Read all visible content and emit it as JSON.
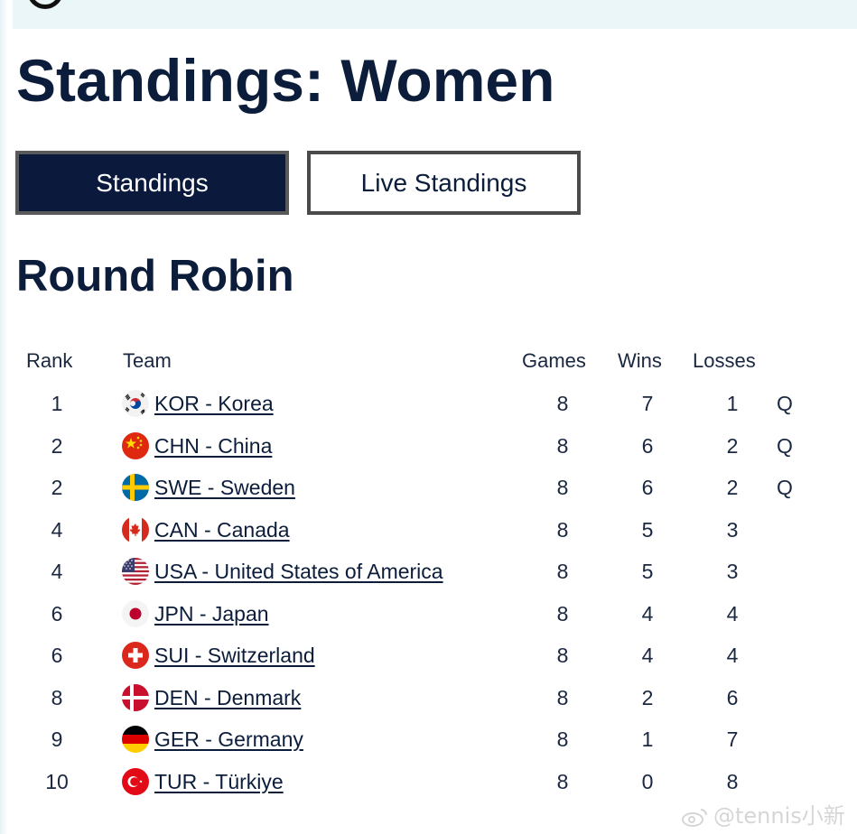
{
  "page": {
    "title": "Standings: Women",
    "tabs": [
      {
        "label": "Standings",
        "active": true
      },
      {
        "label": "Live Standings",
        "active": false
      }
    ],
    "section_title": "Round Robin"
  },
  "table": {
    "headers": {
      "rank": "Rank",
      "team": "Team",
      "games": "Games",
      "wins": "Wins",
      "losses": "Losses"
    },
    "rows": [
      {
        "rank": "1",
        "team": "KOR - Korea",
        "flag": "korea-flag-icon",
        "games": "8",
        "wins": "7",
        "losses": "1",
        "q": "Q"
      },
      {
        "rank": "2",
        "team": "CHN - China",
        "flag": "china-flag-icon",
        "games": "8",
        "wins": "6",
        "losses": "2",
        "q": "Q"
      },
      {
        "rank": "2",
        "team": "SWE - Sweden",
        "flag": "sweden-flag-icon",
        "games": "8",
        "wins": "6",
        "losses": "2",
        "q": "Q"
      },
      {
        "rank": "4",
        "team": "CAN - Canada",
        "flag": "canada-flag-icon",
        "games": "8",
        "wins": "5",
        "losses": "3",
        "q": ""
      },
      {
        "rank": "4",
        "team": "USA - United States of America",
        "flag": "usa-flag-icon",
        "games": "8",
        "wins": "5",
        "losses": "3",
        "q": ""
      },
      {
        "rank": "6",
        "team": "JPN - Japan",
        "flag": "japan-flag-icon",
        "games": "8",
        "wins": "4",
        "losses": "4",
        "q": ""
      },
      {
        "rank": "6",
        "team": "SUI - Switzerland",
        "flag": "switzerland-flag-icon",
        "games": "8",
        "wins": "4",
        "losses": "4",
        "q": ""
      },
      {
        "rank": "8",
        "team": "DEN - Denmark",
        "flag": "denmark-flag-icon",
        "games": "8",
        "wins": "2",
        "losses": "6",
        "q": ""
      },
      {
        "rank": "9",
        "team": "GER - Germany",
        "flag": "germany-flag-icon",
        "games": "8",
        "wins": "1",
        "losses": "7",
        "q": ""
      },
      {
        "rank": "10",
        "team": "TUR - Türkiye",
        "flag": "turkiye-flag-icon",
        "games": "8",
        "wins": "0",
        "losses": "8",
        "q": ""
      }
    ]
  },
  "watermark": {
    "text": "@tennis小新"
  },
  "colors": {
    "navy": "#0b1a3c",
    "text": "#0b1d3a",
    "tab_border": "#4a4a4a"
  }
}
